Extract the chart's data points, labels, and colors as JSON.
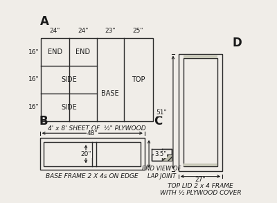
{
  "bg_color": "#f0ede8",
  "line_color": "#2a2a2a",
  "text_color": "#1a1a1a",
  "section_A": {
    "label": "A",
    "caption": "4' x 8' SHEET OF  ½\" PLYWOOD",
    "col_labels": [
      "24\"",
      "24\"",
      "23\"",
      "25\""
    ],
    "row_labels": [
      "16\"",
      "16\"",
      "16\""
    ]
  },
  "section_B": {
    "label": "B",
    "caption": "BASE FRAME 2 X 4s ON EDGE",
    "dim_48": "48\"",
    "dim_20": "20\"",
    "dim_3_5": "3.5\""
  },
  "section_C": {
    "label": "C",
    "caption": "END VIEW OF\nLAP JOINT"
  },
  "section_D": {
    "label": "D",
    "caption": "TOP LID 2 x 4 FRAME\nWITH ½ PLYWOOD COVER",
    "dim_51": "51\"",
    "dim_27": "27\""
  }
}
